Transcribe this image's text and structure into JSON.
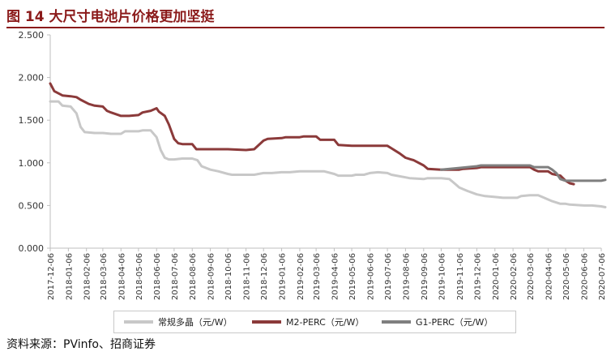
{
  "figure": {
    "title": "图 14  大尺寸电池片价格更加坚挺",
    "source": "资料来源：PVinfo、招商证券"
  },
  "chart_data": {
    "type": "line",
    "title": "",
    "xlabel": "",
    "ylabel": "",
    "ylim": [
      0,
      2.5
    ],
    "yticks": [
      "0.000",
      "0.500",
      "1.000",
      "1.500",
      "2.000",
      "2.500"
    ],
    "xticks": [
      "2017-12-06",
      "2018-01-06",
      "2018-02-06",
      "2018-03-06",
      "2018-04-06",
      "2018-05-06",
      "2018-06-06",
      "2018-07-06",
      "2018-08-06",
      "2018-09-06",
      "2018-10-06",
      "2018-11-06",
      "2018-12-06",
      "2019-01-06",
      "2019-02-06",
      "2019-03-06",
      "2019-04-06",
      "2019-05-06",
      "2019-06-06",
      "2019-07-06",
      "2019-08-06",
      "2019-09-06",
      "2019-10-06",
      "2019-11-06",
      "2019-12-06",
      "2020-01-06",
      "2020-02-06",
      "2020-03-06",
      "2020-04-06",
      "2020-05-06",
      "2020-06-06",
      "2020-07-06"
    ],
    "grid": false,
    "legend_position": "bottom",
    "series": [
      {
        "name": "常规多晶（元/W）",
        "color": "#c8c8c8",
        "points": [
          [
            "2017-12-06",
            1.72
          ],
          [
            "2017-12-20",
            1.72
          ],
          [
            "2017-12-27",
            1.67
          ],
          [
            "2018-01-10",
            1.66
          ],
          [
            "2018-01-20",
            1.58
          ],
          [
            "2018-01-27",
            1.42
          ],
          [
            "2018-02-03",
            1.36
          ],
          [
            "2018-02-20",
            1.35
          ],
          [
            "2018-03-06",
            1.35
          ],
          [
            "2018-03-20",
            1.34
          ],
          [
            "2018-04-06",
            1.34
          ],
          [
            "2018-04-13",
            1.37
          ],
          [
            "2018-05-06",
            1.37
          ],
          [
            "2018-05-13",
            1.38
          ],
          [
            "2018-05-27",
            1.38
          ],
          [
            "2018-06-06",
            1.3
          ],
          [
            "2018-06-13",
            1.15
          ],
          [
            "2018-06-20",
            1.06
          ],
          [
            "2018-06-27",
            1.04
          ],
          [
            "2018-07-06",
            1.04
          ],
          [
            "2018-07-20",
            1.05
          ],
          [
            "2018-08-06",
            1.05
          ],
          [
            "2018-08-15",
            1.03
          ],
          [
            "2018-08-22",
            0.96
          ],
          [
            "2018-09-06",
            0.92
          ],
          [
            "2018-09-20",
            0.9
          ],
          [
            "2018-10-06",
            0.87
          ],
          [
            "2018-10-13",
            0.86
          ],
          [
            "2018-11-06",
            0.86
          ],
          [
            "2018-11-20",
            0.86
          ],
          [
            "2018-12-06",
            0.88
          ],
          [
            "2018-12-20",
            0.88
          ],
          [
            "2019-01-06",
            0.89
          ],
          [
            "2019-01-20",
            0.89
          ],
          [
            "2019-02-06",
            0.9
          ],
          [
            "2019-03-06",
            0.9
          ],
          [
            "2019-03-20",
            0.9
          ],
          [
            "2019-04-06",
            0.87
          ],
          [
            "2019-04-13",
            0.85
          ],
          [
            "2019-05-06",
            0.85
          ],
          [
            "2019-05-13",
            0.86
          ],
          [
            "2019-05-27",
            0.86
          ],
          [
            "2019-06-06",
            0.88
          ],
          [
            "2019-06-20",
            0.89
          ],
          [
            "2019-07-06",
            0.88
          ],
          [
            "2019-07-13",
            0.86
          ],
          [
            "2019-08-06",
            0.83
          ],
          [
            "2019-08-13",
            0.82
          ],
          [
            "2019-09-06",
            0.81
          ],
          [
            "2019-09-13",
            0.82
          ],
          [
            "2019-10-06",
            0.82
          ],
          [
            "2019-10-20",
            0.81
          ],
          [
            "2019-10-27",
            0.77
          ],
          [
            "2019-11-06",
            0.71
          ],
          [
            "2019-11-20",
            0.67
          ],
          [
            "2019-12-06",
            0.63
          ],
          [
            "2019-12-20",
            0.61
          ],
          [
            "2020-01-06",
            0.6
          ],
          [
            "2020-01-20",
            0.59
          ],
          [
            "2020-02-06",
            0.59
          ],
          [
            "2020-02-13",
            0.59
          ],
          [
            "2020-02-20",
            0.61
          ],
          [
            "2020-03-06",
            0.62
          ],
          [
            "2020-03-20",
            0.62
          ],
          [
            "2020-03-27",
            0.6
          ],
          [
            "2020-04-06",
            0.57
          ],
          [
            "2020-04-13",
            0.55
          ],
          [
            "2020-04-27",
            0.52
          ],
          [
            "2020-05-06",
            0.52
          ],
          [
            "2020-05-13",
            0.51
          ],
          [
            "2020-06-06",
            0.5
          ],
          [
            "2020-06-20",
            0.5
          ],
          [
            "2020-07-06",
            0.49
          ],
          [
            "2020-07-13",
            0.48
          ]
        ]
      },
      {
        "name": "M2-PERC（元/W）",
        "color": "#8B3A3A",
        "points": [
          [
            "2017-12-06",
            1.93
          ],
          [
            "2017-12-13",
            1.84
          ],
          [
            "2017-12-27",
            1.79
          ],
          [
            "2018-01-10",
            1.78
          ],
          [
            "2018-01-20",
            1.77
          ],
          [
            "2018-01-27",
            1.74
          ],
          [
            "2018-02-10",
            1.69
          ],
          [
            "2018-02-20",
            1.67
          ],
          [
            "2018-03-06",
            1.66
          ],
          [
            "2018-03-13",
            1.61
          ],
          [
            "2018-03-20",
            1.59
          ],
          [
            "2018-04-06",
            1.55
          ],
          [
            "2018-04-20",
            1.55
          ],
          [
            "2018-05-06",
            1.56
          ],
          [
            "2018-05-13",
            1.59
          ],
          [
            "2018-05-27",
            1.61
          ],
          [
            "2018-06-06",
            1.64
          ],
          [
            "2018-06-10",
            1.6
          ],
          [
            "2018-06-20",
            1.55
          ],
          [
            "2018-06-27",
            1.45
          ],
          [
            "2018-07-06",
            1.28
          ],
          [
            "2018-07-13",
            1.23
          ],
          [
            "2018-07-20",
            1.22
          ],
          [
            "2018-08-06",
            1.22
          ],
          [
            "2018-08-13",
            1.16
          ],
          [
            "2018-09-06",
            1.16
          ],
          [
            "2018-10-06",
            1.16
          ],
          [
            "2018-11-06",
            1.15
          ],
          [
            "2018-11-20",
            1.16
          ],
          [
            "2018-12-06",
            1.26
          ],
          [
            "2018-12-13",
            1.28
          ],
          [
            "2019-01-06",
            1.29
          ],
          [
            "2019-01-13",
            1.3
          ],
          [
            "2019-02-06",
            1.3
          ],
          [
            "2019-02-13",
            1.31
          ],
          [
            "2019-03-06",
            1.31
          ],
          [
            "2019-03-13",
            1.27
          ],
          [
            "2019-04-06",
            1.27
          ],
          [
            "2019-04-13",
            1.21
          ],
          [
            "2019-05-06",
            1.2
          ],
          [
            "2019-06-06",
            1.2
          ],
          [
            "2019-07-06",
            1.2
          ],
          [
            "2019-07-13",
            1.17
          ],
          [
            "2019-07-27",
            1.11
          ],
          [
            "2019-08-06",
            1.06
          ],
          [
            "2019-08-20",
            1.03
          ],
          [
            "2019-09-06",
            0.97
          ],
          [
            "2019-09-13",
            0.93
          ],
          [
            "2019-10-06",
            0.92
          ],
          [
            "2019-11-06",
            0.92
          ],
          [
            "2019-11-13",
            0.93
          ],
          [
            "2019-12-06",
            0.94
          ],
          [
            "2019-12-13",
            0.95
          ],
          [
            "2020-01-06",
            0.95
          ],
          [
            "2020-02-06",
            0.95
          ],
          [
            "2020-03-06",
            0.95
          ],
          [
            "2020-03-13",
            0.92
          ],
          [
            "2020-03-20",
            0.9
          ],
          [
            "2020-04-06",
            0.9
          ],
          [
            "2020-04-13",
            0.87
          ],
          [
            "2020-04-27",
            0.85
          ],
          [
            "2020-05-06",
            0.79
          ],
          [
            "2020-05-13",
            0.76
          ],
          [
            "2020-05-20",
            0.75
          ]
        ]
      },
      {
        "name": "G1-PERC（元/W）",
        "color": "#7f7f7f",
        "points": [
          [
            "2019-10-06",
            0.92
          ],
          [
            "2019-11-06",
            0.94
          ],
          [
            "2019-12-06",
            0.96
          ],
          [
            "2019-12-13",
            0.97
          ],
          [
            "2020-01-06",
            0.97
          ],
          [
            "2020-02-06",
            0.97
          ],
          [
            "2020-03-06",
            0.97
          ],
          [
            "2020-03-13",
            0.95
          ],
          [
            "2020-04-06",
            0.95
          ],
          [
            "2020-04-13",
            0.92
          ],
          [
            "2020-04-20",
            0.88
          ],
          [
            "2020-04-27",
            0.81
          ],
          [
            "2020-05-06",
            0.79
          ],
          [
            "2020-06-06",
            0.79
          ],
          [
            "2020-07-06",
            0.79
          ],
          [
            "2020-07-13",
            0.8
          ]
        ]
      }
    ]
  }
}
